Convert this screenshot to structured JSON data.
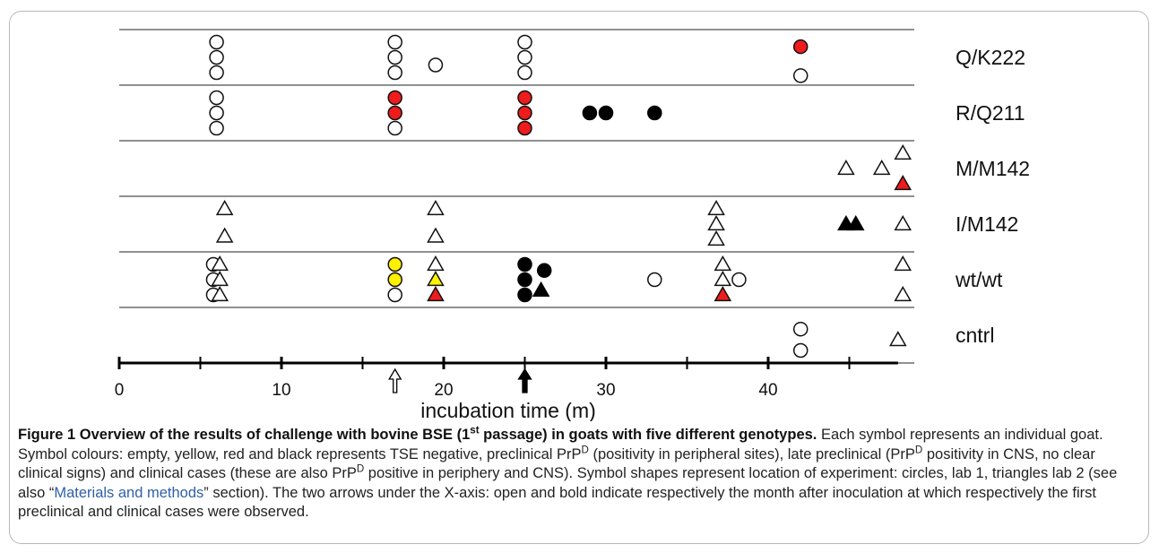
{
  "chart_data": {
    "type": "scatter",
    "xlabel": "incubation time (m)",
    "x_ticks": [
      0,
      10,
      20,
      30,
      40
    ],
    "xlim": [
      0,
      48
    ],
    "rows": [
      {
        "label": "Q/K222",
        "points": [
          {
            "x": 6,
            "shape": "circle",
            "color": "empty",
            "slot": 0
          },
          {
            "x": 6,
            "shape": "circle",
            "color": "empty",
            "slot": 1
          },
          {
            "x": 6,
            "shape": "circle",
            "color": "empty",
            "slot": 2
          },
          {
            "x": 17,
            "shape": "circle",
            "color": "empty",
            "slot": 0
          },
          {
            "x": 17,
            "shape": "circle",
            "color": "empty",
            "slot": 1
          },
          {
            "x": 17,
            "shape": "circle",
            "color": "empty",
            "slot": 2
          },
          {
            "x": 19.5,
            "shape": "circle",
            "color": "empty",
            "slot": 1.5
          },
          {
            "x": 25,
            "shape": "circle",
            "color": "empty",
            "slot": 0
          },
          {
            "x": 25,
            "shape": "circle",
            "color": "empty",
            "slot": 1
          },
          {
            "x": 25,
            "shape": "circle",
            "color": "empty",
            "slot": 2
          },
          {
            "x": 42,
            "shape": "circle",
            "color": "red",
            "slot": 0.3
          },
          {
            "x": 42,
            "shape": "circle",
            "color": "empty",
            "slot": 2.2
          }
        ]
      },
      {
        "label": "R/Q211",
        "points": [
          {
            "x": 6,
            "shape": "circle",
            "color": "empty",
            "slot": 0
          },
          {
            "x": 6,
            "shape": "circle",
            "color": "empty",
            "slot": 1
          },
          {
            "x": 6,
            "shape": "circle",
            "color": "empty",
            "slot": 2
          },
          {
            "x": 17,
            "shape": "circle",
            "color": "red",
            "slot": 0
          },
          {
            "x": 17,
            "shape": "circle",
            "color": "red",
            "slot": 1
          },
          {
            "x": 17,
            "shape": "circle",
            "color": "empty",
            "slot": 2
          },
          {
            "x": 25,
            "shape": "circle",
            "color": "red",
            "slot": 0
          },
          {
            "x": 25,
            "shape": "circle",
            "color": "red",
            "slot": 1
          },
          {
            "x": 25,
            "shape": "circle",
            "color": "red",
            "slot": 2
          },
          {
            "x": 29,
            "shape": "circle",
            "color": "black",
            "slot": 1
          },
          {
            "x": 30,
            "shape": "circle",
            "color": "black",
            "slot": 1
          },
          {
            "x": 33,
            "shape": "circle",
            "color": "black",
            "slot": 1
          }
        ]
      },
      {
        "label": "M/M142",
        "points": [
          {
            "x": 44.8,
            "shape": "triangle",
            "color": "empty",
            "slot": 1
          },
          {
            "x": 47,
            "shape": "triangle",
            "color": "empty",
            "slot": 1
          },
          {
            "x": 48.3,
            "shape": "triangle",
            "color": "empty",
            "slot": 0
          },
          {
            "x": 48.3,
            "shape": "triangle",
            "color": "red",
            "slot": 2
          }
        ]
      },
      {
        "label": "I/M142",
        "points": [
          {
            "x": 6.5,
            "shape": "triangle",
            "color": "empty",
            "slot": 0
          },
          {
            "x": 6.5,
            "shape": "triangle",
            "color": "empty",
            "slot": 1.8
          },
          {
            "x": 19.5,
            "shape": "triangle",
            "color": "empty",
            "slot": 0
          },
          {
            "x": 19.5,
            "shape": "triangle",
            "color": "empty",
            "slot": 1.8
          },
          {
            "x": 36.8,
            "shape": "triangle",
            "color": "empty",
            "slot": 0
          },
          {
            "x": 36.8,
            "shape": "triangle",
            "color": "empty",
            "slot": 1
          },
          {
            "x": 36.8,
            "shape": "triangle",
            "color": "empty",
            "slot": 2
          },
          {
            "x": 44.8,
            "shape": "triangle",
            "color": "black",
            "slot": 1
          },
          {
            "x": 45.4,
            "shape": "triangle",
            "color": "black",
            "slot": 1
          },
          {
            "x": 48.3,
            "shape": "triangle",
            "color": "empty",
            "slot": 1
          }
        ]
      },
      {
        "label": "wt/wt",
        "points": [
          {
            "x": 5.8,
            "shape": "circle",
            "color": "empty",
            "slot": 0
          },
          {
            "x": 5.8,
            "shape": "circle",
            "color": "empty",
            "slot": 1
          },
          {
            "x": 5.8,
            "shape": "circle",
            "color": "empty",
            "slot": 2
          },
          {
            "x": 6.2,
            "shape": "triangle",
            "color": "empty",
            "slot": 0
          },
          {
            "x": 6.2,
            "shape": "triangle",
            "color": "empty",
            "slot": 1
          },
          {
            "x": 6.2,
            "shape": "triangle",
            "color": "empty",
            "slot": 2
          },
          {
            "x": 17,
            "shape": "circle",
            "color": "yellow",
            "slot": 0
          },
          {
            "x": 17,
            "shape": "circle",
            "color": "yellow",
            "slot": 1
          },
          {
            "x": 17,
            "shape": "circle",
            "color": "empty",
            "slot": 2
          },
          {
            "x": 19.5,
            "shape": "triangle",
            "color": "empty",
            "slot": 0
          },
          {
            "x": 19.5,
            "shape": "triangle",
            "color": "yellow",
            "slot": 1
          },
          {
            "x": 19.5,
            "shape": "triangle",
            "color": "red",
            "slot": 2
          },
          {
            "x": 25,
            "shape": "circle",
            "color": "black",
            "slot": 0
          },
          {
            "x": 25,
            "shape": "circle",
            "color": "black",
            "slot": 1
          },
          {
            "x": 25,
            "shape": "circle",
            "color": "black",
            "slot": 2
          },
          {
            "x": 26.2,
            "shape": "circle",
            "color": "black",
            "slot": 0.4
          },
          {
            "x": 26,
            "shape": "triangle",
            "color": "black",
            "slot": 1.7
          },
          {
            "x": 33,
            "shape": "circle",
            "color": "empty",
            "slot": 1
          },
          {
            "x": 37.2,
            "shape": "triangle",
            "color": "empty",
            "slot": 0
          },
          {
            "x": 37.2,
            "shape": "triangle",
            "color": "empty",
            "slot": 1
          },
          {
            "x": 37.2,
            "shape": "triangle",
            "color": "red",
            "slot": 2
          },
          {
            "x": 38.2,
            "shape": "circle",
            "color": "empty",
            "slot": 1
          },
          {
            "x": 48.3,
            "shape": "triangle",
            "color": "empty",
            "slot": 0
          },
          {
            "x": 48.3,
            "shape": "triangle",
            "color": "empty",
            "slot": 2
          }
        ]
      },
      {
        "label": "cntrl",
        "points": [
          {
            "x": 42,
            "shape": "circle",
            "color": "empty",
            "slot": 0.6
          },
          {
            "x": 42,
            "shape": "circle",
            "color": "empty",
            "slot": 2
          },
          {
            "x": 48,
            "shape": "triangle",
            "color": "empty",
            "slot": 1.3
          }
        ]
      }
    ],
    "arrows": [
      {
        "x": 17,
        "style": "open"
      },
      {
        "x": 25,
        "style": "bold"
      }
    ],
    "colors": {
      "red": "#ee1c1c",
      "yellow": "#fff200",
      "black": "#000000",
      "empty": "#ffffff",
      "stroke": "#111111"
    }
  },
  "caption": {
    "title_a": "Figure 1  Overview of the results of challenge with bovine BSE (1",
    "title_sup": "st",
    "title_b": " passage) in goats with five different genotypes.",
    "t1": " Each symbol represents an individual goat. Symbol colours: empty, yellow, red and black represents TSE negative, preclinical PrP",
    "sup1": "D",
    "t2": " (positivity in peripheral sites), late preclinical (PrP",
    "sup2": "D",
    "t3": " positivity in CNS, no clear clinical signs) and clinical cases (these are also PrP",
    "sup3": "D",
    "t4": " positive in periphery and CNS). Symbol shapes represent location of experiment: circles, lab 1, triangles lab 2 (see also “",
    "link": "Materials and methods",
    "t5": "” section). The two arrows under the X-axis: open and bold indicate respectively the month after inoculation at which respectively the first preclinical and clinical cases were observed."
  }
}
